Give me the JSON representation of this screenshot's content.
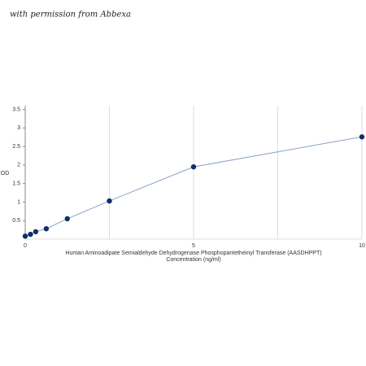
{
  "watermark": "with permission from Abbexa",
  "chart_data": {
    "type": "line",
    "ylabel": "OD",
    "xlabel": [
      "Human Aminoadipate Semialdehyde Dehydrogenase Phosphopantetheinyl Transferase (AASDHPPT)",
      "Concentration (ng/ml)"
    ],
    "x": [
      0,
      0.156,
      0.312,
      0.625,
      1.25,
      2.5,
      5,
      10
    ],
    "series": [
      {
        "color": "#0d3068",
        "line_color": "#8aa3c4",
        "values": [
          0.08,
          0.13,
          0.2,
          0.28,
          0.55,
          1.03,
          1.95,
          2.76
        ]
      }
    ],
    "xlim": [
      0,
      10
    ],
    "xticks": [
      0,
      5,
      10
    ],
    "x_gridlines": [
      2.5,
      5,
      7.5,
      10
    ],
    "ylim": [
      0,
      3.6
    ],
    "yticks": [
      0.5,
      1,
      1.5,
      2,
      2.5,
      3,
      3.5
    ]
  }
}
